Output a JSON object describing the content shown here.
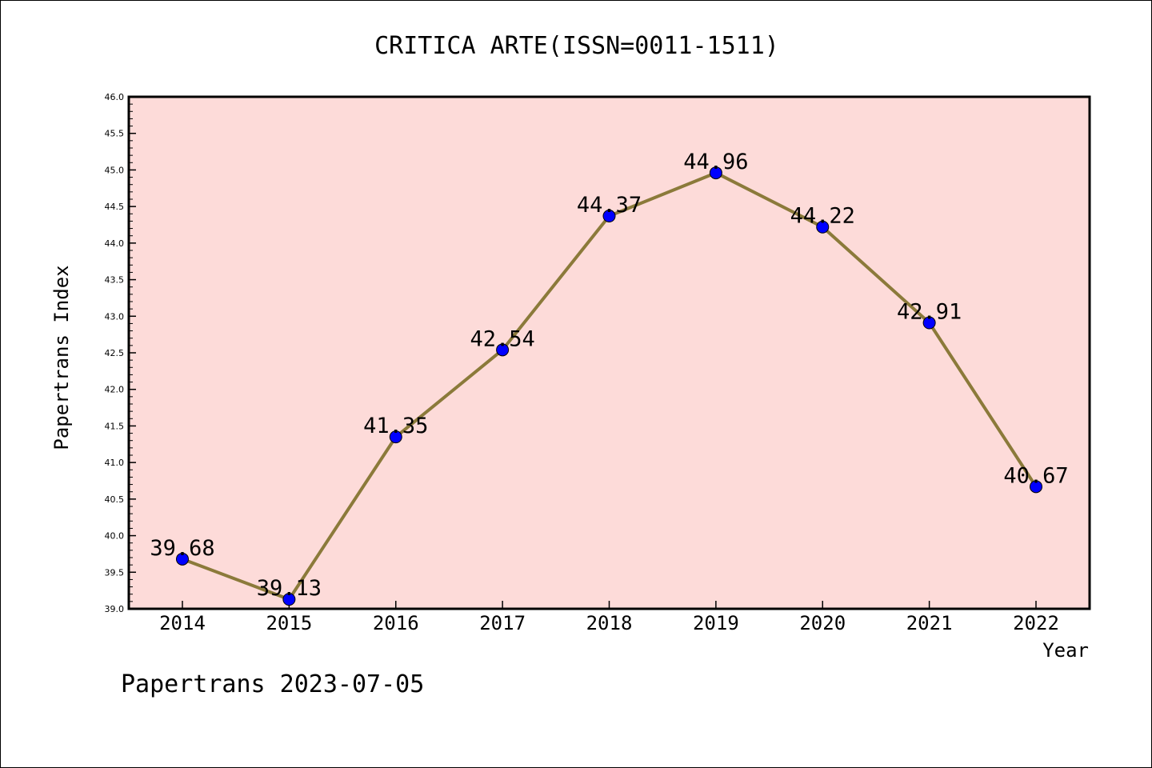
{
  "chart_data": {
    "type": "line",
    "title": "CRITICA ARTE(ISSN=0011-1511)",
    "xlabel": "Year",
    "ylabel": "Papertrans Index",
    "x": [
      "2014",
      "2015",
      "2016",
      "2017",
      "2018",
      "2019",
      "2020",
      "2021",
      "2022"
    ],
    "values": [
      39.68,
      39.13,
      41.35,
      42.54,
      44.37,
      44.96,
      44.22,
      42.91,
      40.67
    ],
    "data_labels": [
      "39.68",
      "39.13",
      "41.35",
      "42.54",
      "44.37",
      "44.96",
      "44.22",
      "42.91",
      "40.67"
    ],
    "ylim": [
      39.0,
      46.0
    ],
    "yticks": [
      "39.0",
      "39.5",
      "40.0",
      "40.5",
      "41.0",
      "41.5",
      "42.0",
      "42.5",
      "43.0",
      "43.5",
      "44.0",
      "44.5",
      "45.0",
      "45.5",
      "46.0"
    ],
    "line_color": "#8b7a3a",
    "marker_color": "#0000ff",
    "plot_background": "#fddbd9",
    "grid": false,
    "legend": "none"
  },
  "footer": "Papertrans 2023-07-05"
}
